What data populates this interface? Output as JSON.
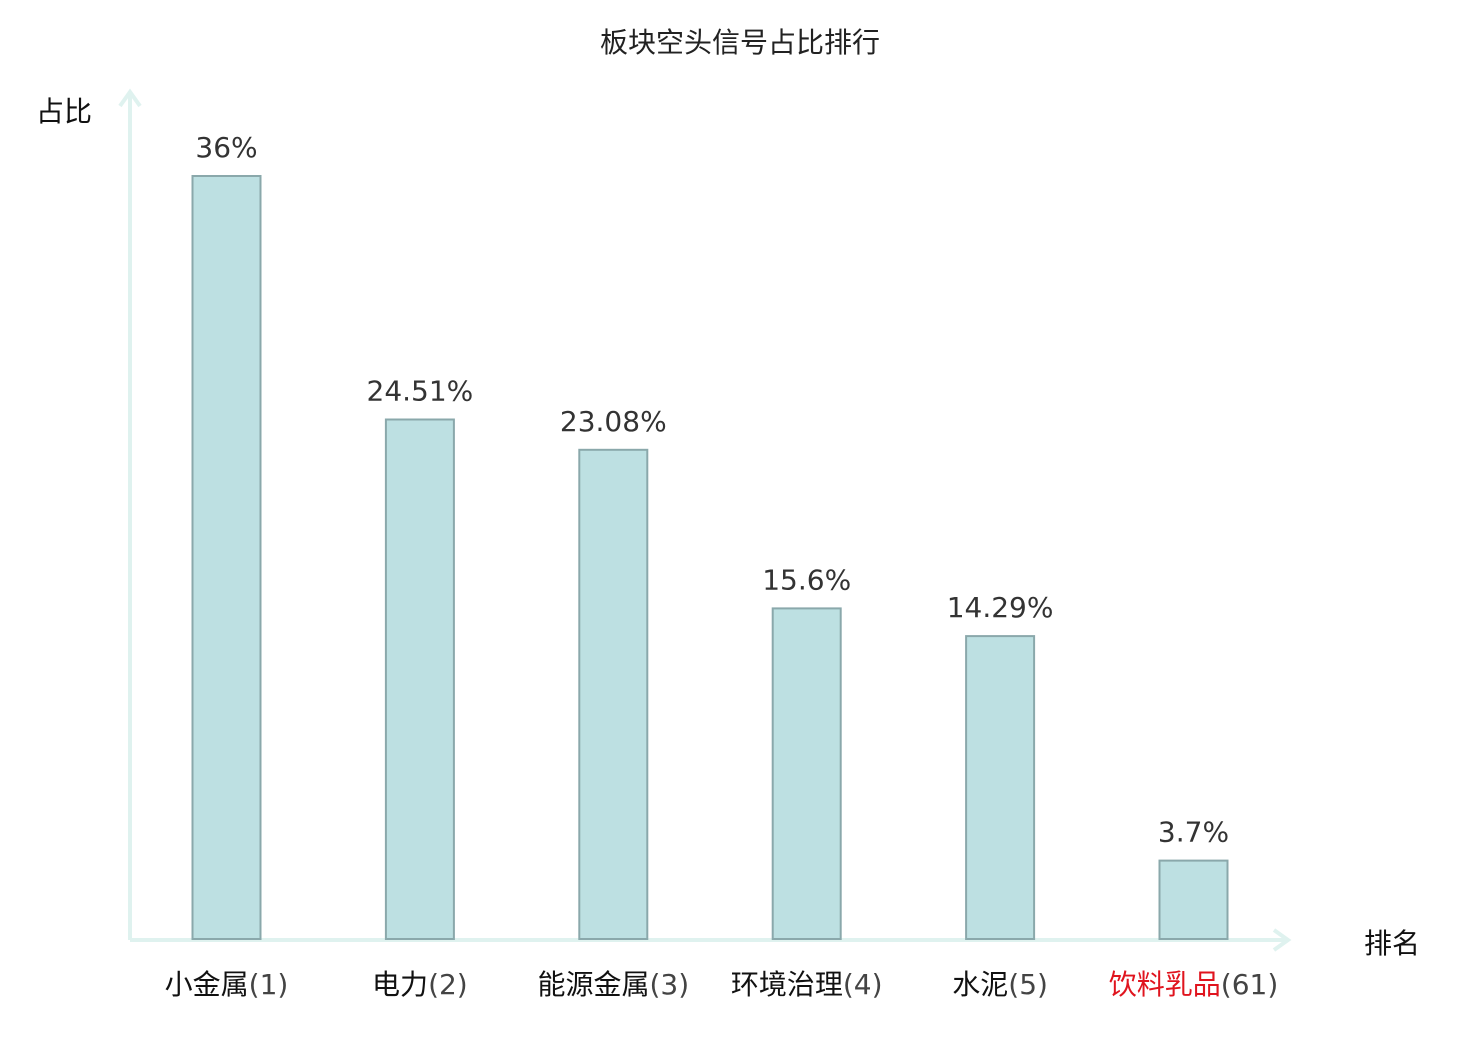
{
  "chart_data": {
    "type": "bar",
    "title": "板块空头信号占比排行",
    "ylabel": "占比",
    "xlabel": "排名",
    "ylim": [
      0,
      40
    ],
    "grid": false,
    "legend": "none",
    "categories": [
      "小金属",
      "电力",
      "能源金属",
      "环境治理",
      "水泥",
      "饮料乳品"
    ],
    "ranks": [
      "(1)",
      "(2)",
      "(3)",
      "(4)",
      "(5)",
      "(61)"
    ],
    "values": [
      36,
      24.51,
      23.08,
      15.6,
      14.29,
      3.7
    ],
    "value_labels": [
      "36%",
      "24.51%",
      "23.08%",
      "15.6%",
      "14.29%",
      "3.7%"
    ],
    "highlight_index": 5
  },
  "colors": {
    "bar_fill": "#bde0e2",
    "bar_stroke": "#8aa8ab",
    "axis": "#dff2ef",
    "highlight": "#e0141e",
    "label_default": "#111111"
  }
}
